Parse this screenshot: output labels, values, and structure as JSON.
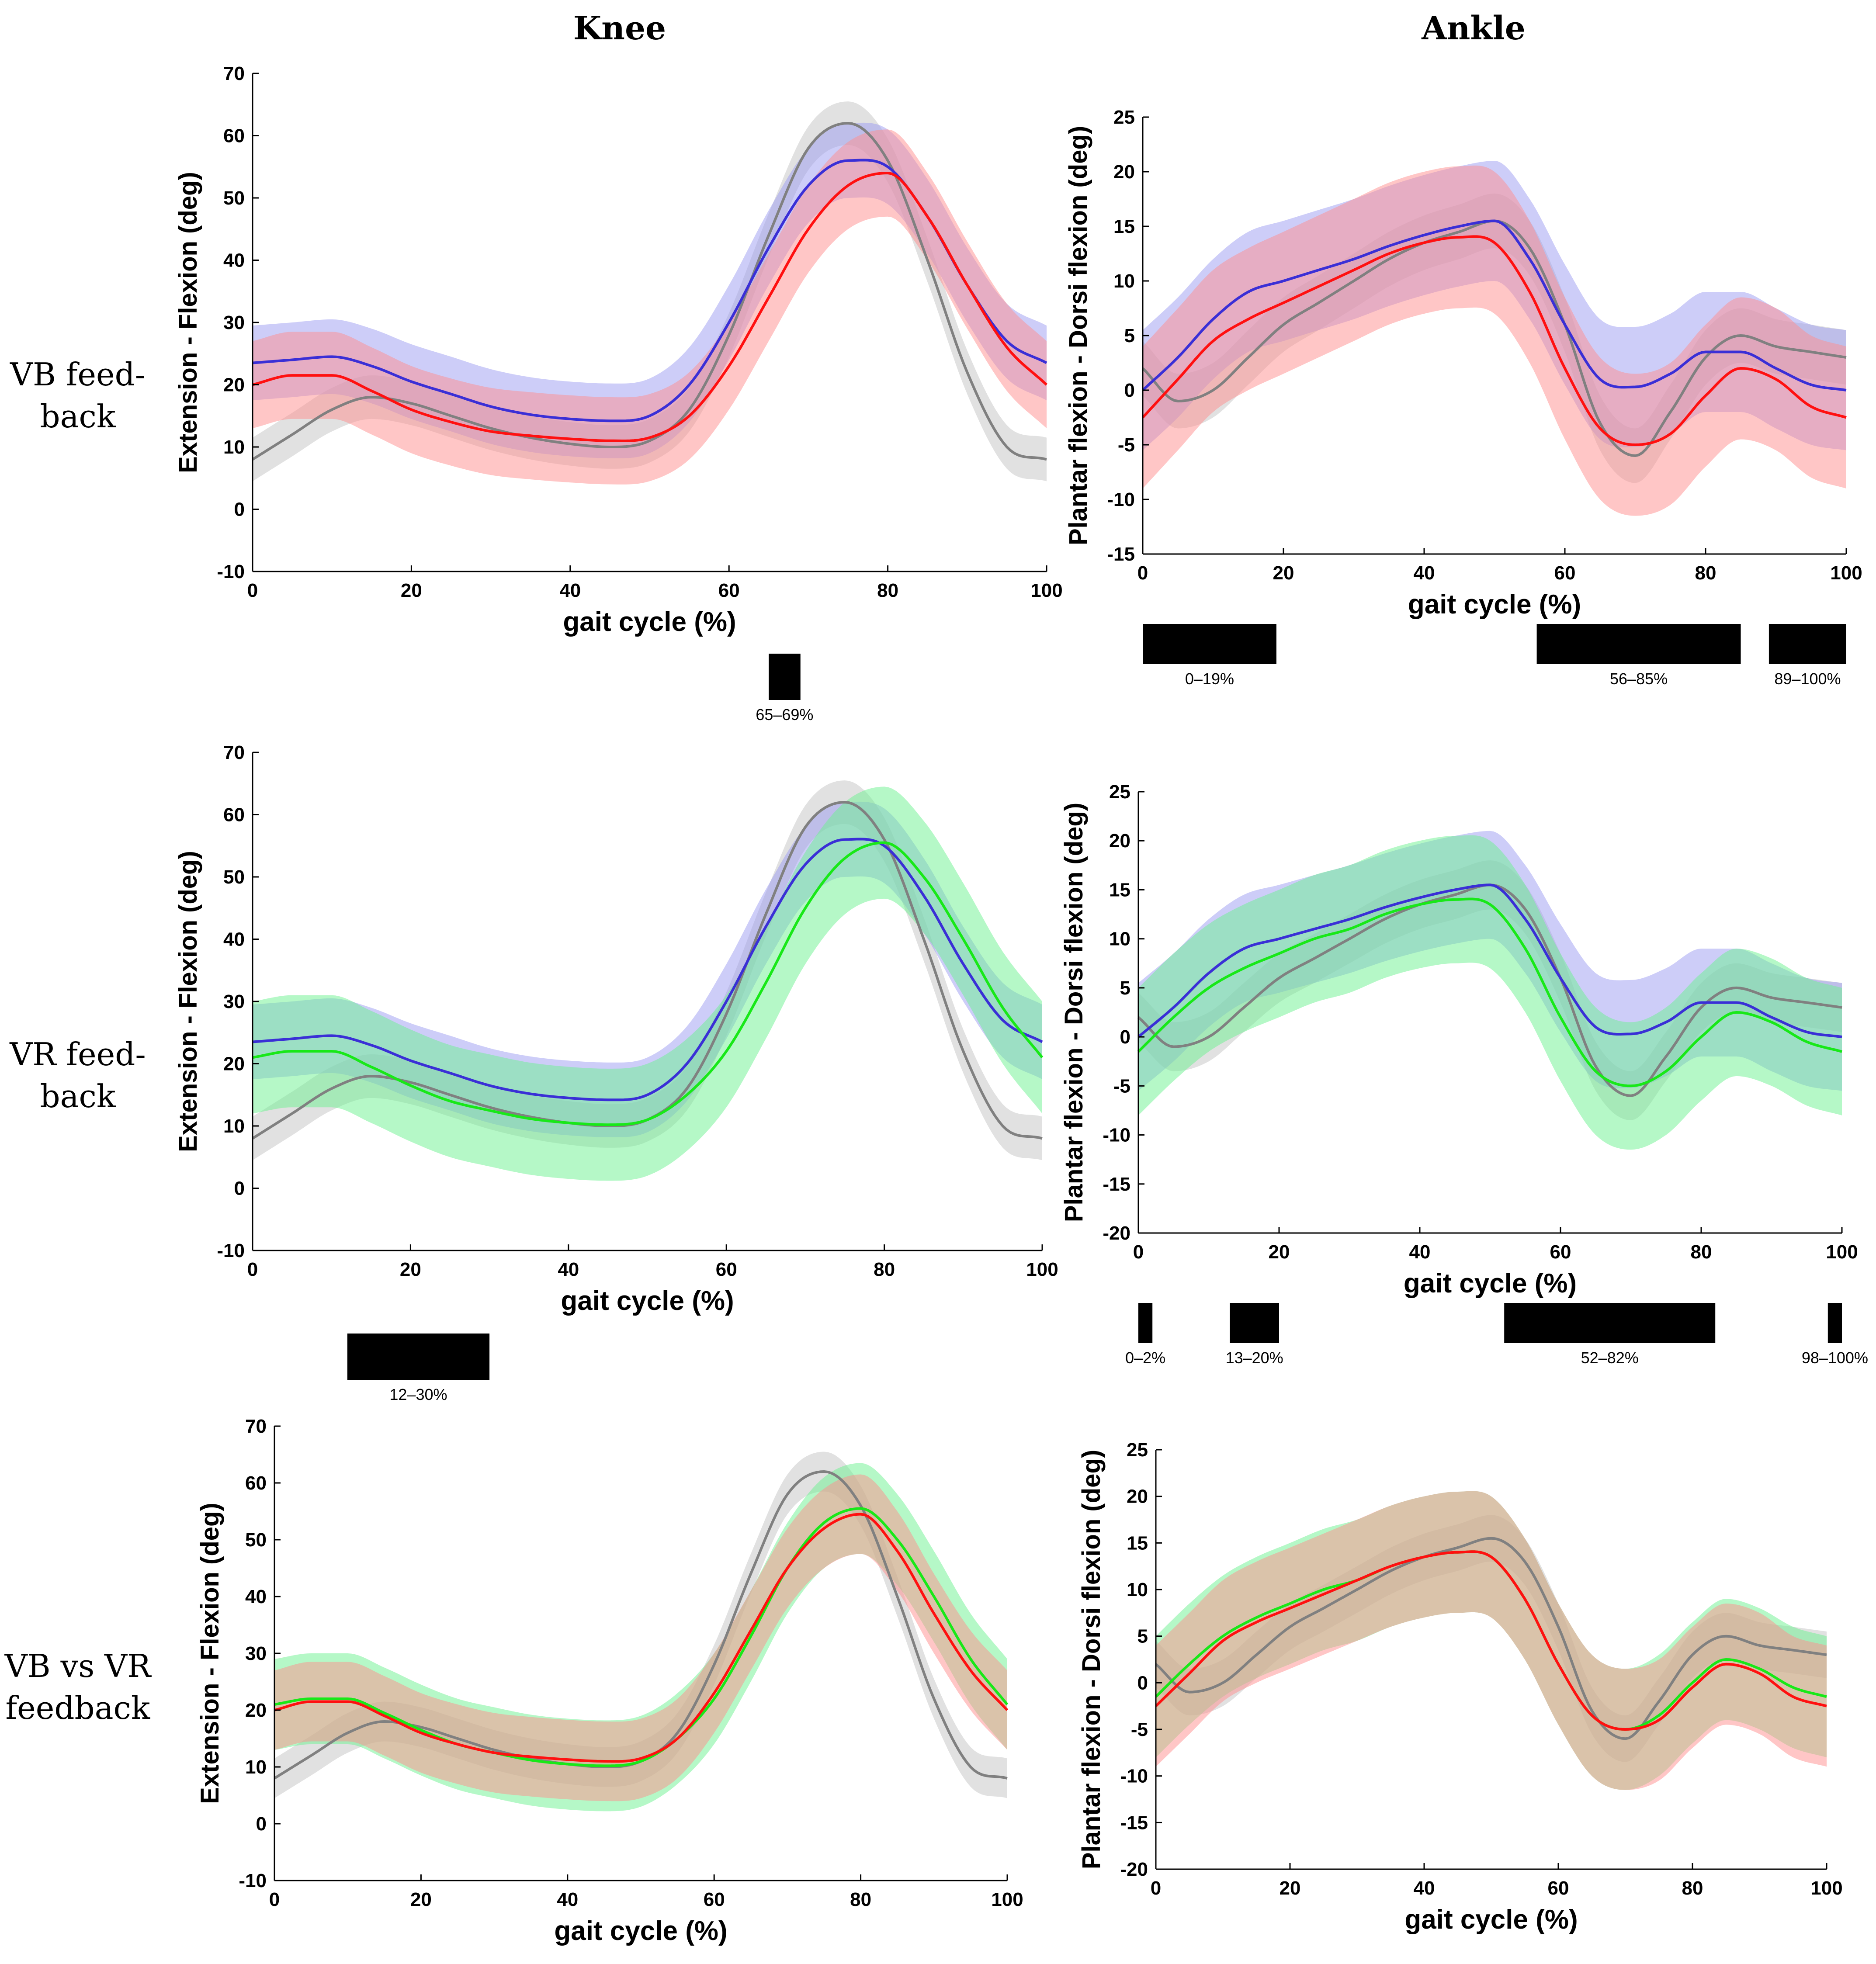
{
  "column_titles": [
    "Knee",
    "Ankle"
  ],
  "row_labels": [
    [
      "VB feed-",
      "back"
    ],
    [
      "VR feed-",
      "back"
    ],
    [
      "VB vs VR",
      "feedback"
    ]
  ],
  "colors": {
    "gray": "#808080",
    "gray_band": "#c8c8c8",
    "blue": "#3a2fd6",
    "blue_band": "#9b9bf2",
    "red": "#ff1010",
    "red_band": "#ff8e8e",
    "green": "#18e818",
    "green_band": "#6cf28f",
    "sig_bar": "#000000"
  },
  "chart_data": [
    {
      "id": "vb-knee",
      "type": "line",
      "title": "",
      "xlabel": "gait cycle (%)",
      "ylabel": "Extension - Flexion (deg)",
      "xlim": [
        0,
        100
      ],
      "ylim": [
        -10,
        70
      ],
      "xticks": [
        "0",
        "20",
        "40",
        "60",
        "80",
        "100"
      ],
      "yticks": [
        "-10",
        "0",
        "10",
        "20",
        "30",
        "40",
        "50",
        "60",
        "70"
      ],
      "x": [
        0,
        5,
        10,
        15,
        20,
        25,
        30,
        35,
        40,
        45,
        50,
        55,
        60,
        65,
        70,
        75,
        80,
        85,
        90,
        95,
        100
      ],
      "series": [
        {
          "name": "gray",
          "values": [
            8,
            12,
            16,
            18,
            17,
            15,
            13,
            11.5,
            10.5,
            10,
            11,
            16,
            28,
            44,
            58,
            62,
            56,
            40,
            22,
            10,
            8
          ],
          "sd": 3.5
        },
        {
          "name": "blue",
          "values": [
            23.5,
            24,
            24.5,
            23,
            20.5,
            18.5,
            16.5,
            15.2,
            14.5,
            14.2,
            15,
            20,
            30,
            42,
            52,
            56,
            55,
            47,
            36,
            27,
            23.5
          ],
          "sd": 6
        },
        {
          "name": "red",
          "values": [
            20,
            21.5,
            21.5,
            19,
            16,
            14,
            12.5,
            11.8,
            11.3,
            11,
            11.5,
            15,
            23,
            34,
            45,
            52,
            54,
            47,
            36,
            26,
            20
          ],
          "sd": 7
        }
      ],
      "significance": [
        {
          "range": [
            65,
            69
          ],
          "label": "65–69%"
        }
      ]
    },
    {
      "id": "vb-ankle",
      "type": "line",
      "title": "",
      "xlabel": "gait cycle (%)",
      "ylabel": "Plantar flexion - Dorsi flexion (deg)",
      "xlim": [
        0,
        100
      ],
      "ylim": [
        -15,
        25
      ],
      "xticks": [
        "0",
        "20",
        "40",
        "60",
        "80",
        "100"
      ],
      "yticks": [
        "-15",
        "-10",
        "-5",
        "0",
        "5",
        "10",
        "15",
        "20",
        "25"
      ],
      "x": [
        0,
        5,
        10,
        15,
        20,
        25,
        30,
        35,
        40,
        45,
        50,
        55,
        60,
        65,
        70,
        75,
        80,
        85,
        90,
        95,
        100
      ],
      "series": [
        {
          "name": "gray",
          "values": [
            2,
            -1,
            0,
            3,
            6,
            8,
            10,
            12,
            13.5,
            14.5,
            15.5,
            13,
            6,
            -3,
            -6,
            -2,
            3,
            5,
            4,
            3.5,
            3
          ],
          "sd": 2.5
        },
        {
          "name": "blue",
          "values": [
            0,
            3,
            6.5,
            9,
            10,
            11,
            12,
            13.2,
            14.2,
            15,
            15.5,
            12,
            6,
            1,
            0.3,
            1.5,
            3.5,
            3.5,
            2,
            0.5,
            0
          ],
          "sd": 5.5
        },
        {
          "name": "red",
          "values": [
            -2.5,
            1,
            4.5,
            6.5,
            8,
            9.5,
            11,
            12.5,
            13.5,
            14,
            13.5,
            9,
            2,
            -3.5,
            -5,
            -4,
            -0.5,
            2,
            1,
            -1.5,
            -2.5
          ],
          "sd": 6.5
        }
      ],
      "significance": [
        {
          "range": [
            0,
            19
          ],
          "label": "0–19%"
        },
        {
          "range": [
            56,
            85
          ],
          "label": "56–85%"
        },
        {
          "range": [
            89,
            100
          ],
          "label": "89–100%"
        }
      ]
    },
    {
      "id": "vr-knee",
      "type": "line",
      "title": "",
      "xlabel": "gait cycle (%)",
      "ylabel": "Extension - Flexion (deg)",
      "xlim": [
        0,
        100
      ],
      "ylim": [
        -10,
        70
      ],
      "xticks": [
        "0",
        "20",
        "40",
        "60",
        "80",
        "100"
      ],
      "yticks": [
        "-10",
        "0",
        "10",
        "20",
        "30",
        "40",
        "50",
        "60",
        "70"
      ],
      "x": [
        0,
        5,
        10,
        15,
        20,
        25,
        30,
        35,
        40,
        45,
        50,
        55,
        60,
        65,
        70,
        75,
        80,
        85,
        90,
        95,
        100
      ],
      "series": [
        {
          "name": "gray",
          "values": [
            8,
            12,
            16,
            18,
            17,
            15,
            13,
            11.5,
            10.5,
            10,
            11,
            16,
            28,
            44,
            58,
            62,
            56,
            40,
            22,
            10,
            8
          ],
          "sd": 3.5
        },
        {
          "name": "blue",
          "values": [
            23.5,
            24,
            24.5,
            23,
            20.5,
            18.5,
            16.5,
            15.2,
            14.5,
            14.2,
            15,
            20,
            30,
            42,
            52,
            56,
            55,
            47,
            36,
            27,
            23.5
          ],
          "sd": 6
        },
        {
          "name": "green",
          "values": [
            21,
            22,
            22,
            19.5,
            16.5,
            14,
            12.5,
            11.2,
            10.5,
            10.2,
            11,
            15,
            22,
            33,
            45,
            53,
            55.5,
            50,
            40,
            29,
            21
          ],
          "sd": 9
        }
      ],
      "significance": [
        {
          "range": [
            12,
            30
          ],
          "label": "12–30%"
        }
      ]
    },
    {
      "id": "vr-ankle",
      "type": "line",
      "title": "",
      "xlabel": "gait cycle (%)",
      "ylabel": "Plantar flexion - Dorsi flexion (deg)",
      "xlim": [
        0,
        100
      ],
      "ylim": [
        -20,
        25
      ],
      "xticks": [
        "0",
        "20",
        "40",
        "60",
        "80",
        "100"
      ],
      "yticks": [
        "-20",
        "-15",
        "-10",
        "-5",
        "0",
        "5",
        "10",
        "15",
        "20",
        "25"
      ],
      "x": [
        0,
        5,
        10,
        15,
        20,
        25,
        30,
        35,
        40,
        45,
        50,
        55,
        60,
        65,
        70,
        75,
        80,
        85,
        90,
        95,
        100
      ],
      "series": [
        {
          "name": "gray",
          "values": [
            2,
            -1,
            0,
            3,
            6,
            8,
            10,
            12,
            13.5,
            14.5,
            15.5,
            13,
            6,
            -3,
            -6,
            -2,
            3,
            5,
            4,
            3.5,
            3
          ],
          "sd": 2.5
        },
        {
          "name": "blue",
          "values": [
            0,
            3,
            6.5,
            9,
            10,
            11,
            12,
            13.2,
            14.2,
            15,
            15.5,
            12,
            6,
            1,
            0.3,
            1.5,
            3.5,
            3.5,
            2,
            0.5,
            0
          ],
          "sd": 5.5
        },
        {
          "name": "green",
          "values": [
            -1.5,
            2,
            5,
            7,
            8.5,
            10,
            11,
            12.5,
            13.5,
            14,
            13.5,
            9,
            2,
            -3.5,
            -5,
            -3.5,
            0,
            2.5,
            1.5,
            -0.5,
            -1.5
          ],
          "sd": 6.5
        }
      ],
      "significance": [
        {
          "range": [
            0,
            2
          ],
          "label": "0–2%"
        },
        {
          "range": [
            13,
            20
          ],
          "label": "13–20%"
        },
        {
          "range": [
            52,
            82
          ],
          "label": "52–82%"
        },
        {
          "range": [
            98,
            100
          ],
          "label": "98–100%"
        }
      ]
    },
    {
      "id": "vbvr-knee",
      "type": "line",
      "title": "",
      "xlabel": "gait cycle (%)",
      "ylabel": "Extension - Flexion (deg)",
      "xlim": [
        0,
        100
      ],
      "ylim": [
        -10,
        70
      ],
      "xticks": [
        "0",
        "20",
        "40",
        "60",
        "80",
        "100"
      ],
      "yticks": [
        "-10",
        "0",
        "10",
        "20",
        "30",
        "40",
        "50",
        "60",
        "70"
      ],
      "x": [
        0,
        5,
        10,
        15,
        20,
        25,
        30,
        35,
        40,
        45,
        50,
        55,
        60,
        65,
        70,
        75,
        80,
        85,
        90,
        95,
        100
      ],
      "series": [
        {
          "name": "gray",
          "values": [
            8,
            12,
            16,
            18,
            17,
            15,
            13,
            11.5,
            10.5,
            10,
            11,
            16,
            28,
            44,
            58,
            62,
            56,
            40,
            22,
            10,
            8
          ],
          "sd": 3.5
        },
        {
          "name": "green",
          "values": [
            21,
            22,
            22,
            19.5,
            16.5,
            14,
            12.5,
            11.2,
            10.5,
            10.2,
            11,
            15,
            22,
            33,
            45,
            53,
            55.5,
            50,
            40,
            29,
            21
          ],
          "sd": 8
        },
        {
          "name": "red",
          "values": [
            20,
            21.5,
            21.5,
            19,
            16,
            14,
            12.5,
            11.8,
            11.3,
            11,
            11.5,
            15,
            23,
            34,
            45,
            52,
            54.5,
            48,
            37,
            27,
            20
          ],
          "sd": 7
        }
      ],
      "significance": []
    },
    {
      "id": "vbvr-ankle",
      "type": "line",
      "title": "",
      "xlabel": "gait cycle (%)",
      "ylabel": "Plantar flexion - Dorsi flexion (deg)",
      "xlim": [
        0,
        100
      ],
      "ylim": [
        -20,
        25
      ],
      "xticks": [
        "0",
        "20",
        "40",
        "60",
        "80",
        "100"
      ],
      "yticks": [
        "-20",
        "-15",
        "-10",
        "-5",
        "0",
        "5",
        "10",
        "15",
        "20",
        "25"
      ],
      "x": [
        0,
        5,
        10,
        15,
        20,
        25,
        30,
        35,
        40,
        45,
        50,
        55,
        60,
        65,
        70,
        75,
        80,
        85,
        90,
        95,
        100
      ],
      "series": [
        {
          "name": "gray",
          "values": [
            2,
            -1,
            0,
            3,
            6,
            8,
            10,
            12,
            13.5,
            14.5,
            15.5,
            13,
            6,
            -3,
            -6,
            -2,
            3,
            5,
            4,
            3.5,
            3
          ],
          "sd": 2.5
        },
        {
          "name": "green",
          "values": [
            -1.5,
            2,
            5,
            7,
            8.5,
            10,
            11,
            12.5,
            13.5,
            14,
            13.5,
            9,
            2,
            -3.5,
            -5,
            -3.5,
            0,
            2.5,
            1.5,
            -0.5,
            -1.5
          ],
          "sd": 6.5
        },
        {
          "name": "red",
          "values": [
            -2.5,
            1,
            4.5,
            6.5,
            8,
            9.5,
            11,
            12.5,
            13.5,
            14,
            13.5,
            9,
            2,
            -3.5,
            -5,
            -4,
            -0.5,
            2,
            1,
            -1.5,
            -2.5
          ],
          "sd": 6.5
        }
      ],
      "significance": []
    }
  ]
}
